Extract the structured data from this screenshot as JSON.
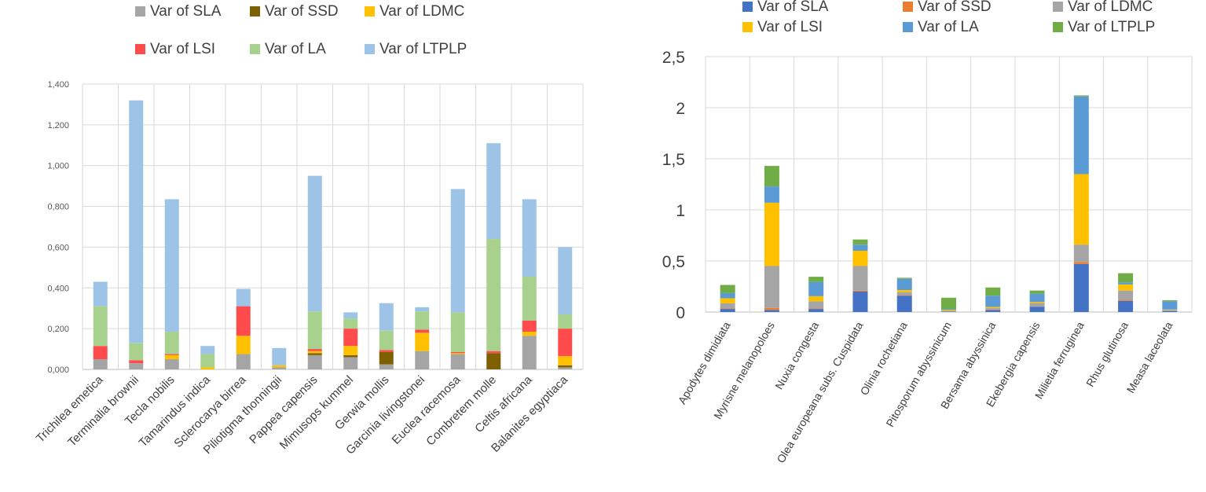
{
  "chart_data": [
    {
      "type": "bar",
      "stacked": true,
      "title": "",
      "xlabel": "",
      "ylabel": "",
      "ylim": [
        0,
        1.4
      ],
      "yticks": [
        "0,000",
        "0,200",
        "0,400",
        "0,600",
        "0,800",
        "1,000",
        "1,200",
        "1,400"
      ],
      "grid": true,
      "legend_position": "top",
      "categories": [
        "Trichilea emetica",
        "Terminalia brownii",
        "Tecla nobilis",
        "Tamarindus indica",
        "Sclerocarya birrea",
        "Piliotigma thonningii",
        "Pappea capensis",
        "Mimusops kummel",
        "Gerwia mollis",
        "Garcinia livingstonei",
        "Euclea racemosa",
        "Combretem molle",
        "Celtis africana",
        "Balanites egyptiaca"
      ],
      "series": [
        {
          "name": "Var of SLA",
          "color": "#a5a5a5",
          "values": [
            0.05,
            0.03,
            0.05,
            0.0,
            0.075,
            0.01,
            0.07,
            0.06,
            0.025,
            0.09,
            0.075,
            0.0,
            0.165,
            0.01
          ]
        },
        {
          "name": "Var of SSD",
          "color": "#7f6000",
          "values": [
            0.0,
            0.0,
            0.0,
            0.0,
            0.0,
            0.0,
            0.01,
            0.01,
            0.06,
            0.0,
            0.0,
            0.08,
            0.0,
            0.01
          ]
        },
        {
          "name": "Var of LDMC",
          "color": "#ffc000",
          "values": [
            0.0,
            0.0,
            0.02,
            0.01,
            0.09,
            0.01,
            0.01,
            0.045,
            0.0,
            0.09,
            0.005,
            0.0,
            0.02,
            0.045
          ]
        },
        {
          "name": "Var of LSI",
          "color": "#ff4b4b",
          "values": [
            0.065,
            0.015,
            0.005,
            0.0,
            0.145,
            0.0,
            0.01,
            0.085,
            0.01,
            0.015,
            0.005,
            0.01,
            0.055,
            0.135
          ]
        },
        {
          "name": "Var of LA",
          "color": "#a9d18e",
          "values": [
            0.195,
            0.085,
            0.11,
            0.065,
            0.0,
            0.0,
            0.185,
            0.05,
            0.095,
            0.09,
            0.195,
            0.55,
            0.215,
            0.07
          ]
        },
        {
          "name": "Var of LTPLP",
          "color": "#9dc3e6",
          "values": [
            0.12,
            1.19,
            0.65,
            0.04,
            0.085,
            0.085,
            0.665,
            0.03,
            0.135,
            0.02,
            0.605,
            0.47,
            0.38,
            0.33
          ]
        }
      ]
    },
    {
      "type": "bar",
      "stacked": true,
      "title": "",
      "xlabel": "",
      "ylabel": "",
      "ylim": [
        0,
        2.5
      ],
      "yticks": [
        "0",
        "0,5",
        "1",
        "1,5",
        "2",
        "2,5"
      ],
      "grid": true,
      "legend_position": "top",
      "categories": [
        "Apodytes dimidiata",
        "Myrisne melanopoloes",
        "Nuxia congesta",
        "Olea europeana subs. Cuspidata",
        "Olinia rochetiana",
        "Pitosporum abyssinicum",
        "Bersama abyssinica",
        "Ekebergia capensis",
        "Milietia ferruginea",
        "Rhus glutinosa",
        "Measa laceolata"
      ],
      "series": [
        {
          "name": "Var of SLA",
          "color": "#4472c4",
          "values": [
            0.03,
            0.02,
            0.03,
            0.2,
            0.16,
            0.005,
            0.02,
            0.05,
            0.47,
            0.11,
            0.01
          ]
        },
        {
          "name": "Var of SSD",
          "color": "#ed7d31",
          "values": [
            0.005,
            0.02,
            0.005,
            0.01,
            0.005,
            0.0,
            0.005,
            0.0,
            0.02,
            0.01,
            0.0
          ]
        },
        {
          "name": "Var of LDMC",
          "color": "#a5a5a5",
          "values": [
            0.05,
            0.41,
            0.07,
            0.24,
            0.03,
            0.005,
            0.015,
            0.04,
            0.17,
            0.09,
            0.01
          ]
        },
        {
          "name": "Var of LSI",
          "color": "#ffc000",
          "values": [
            0.05,
            0.62,
            0.05,
            0.15,
            0.02,
            0.01,
            0.01,
            0.01,
            0.69,
            0.06,
            0.005
          ]
        },
        {
          "name": "Var of LA",
          "color": "#5b9bd5",
          "values": [
            0.05,
            0.16,
            0.14,
            0.06,
            0.11,
            0.01,
            0.11,
            0.08,
            0.76,
            0.02,
            0.08
          ]
        },
        {
          "name": "Var of LTPLP",
          "color": "#70ad47",
          "values": [
            0.08,
            0.2,
            0.05,
            0.05,
            0.01,
            0.11,
            0.08,
            0.03,
            0.01,
            0.09,
            0.01
          ]
        }
      ]
    }
  ]
}
